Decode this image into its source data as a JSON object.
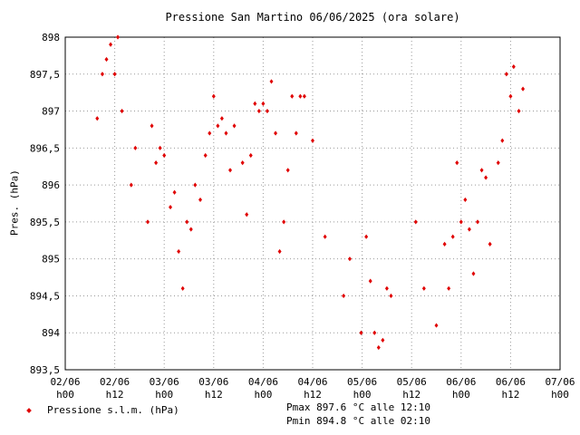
{
  "chart_data": {
    "type": "scatter",
    "title": "Pressione San Martino 06/06/2025 (ora solare)",
    "ylabel": "Pres. (hPa)",
    "xlabel": "",
    "ylim": [
      893.5,
      898
    ],
    "xlim_hours": [
      0,
      120
    ],
    "grid": true,
    "y_ticks": [
      "898",
      "897,5",
      "897",
      "896,5",
      "896",
      "895,5",
      "895",
      "894,5",
      "894",
      "893,5"
    ],
    "x_ticks": [
      {
        "date": "02/06",
        "time": "h00"
      },
      {
        "date": "02/06",
        "time": "h12"
      },
      {
        "date": "03/06",
        "time": "h00"
      },
      {
        "date": "03/06",
        "time": "h12"
      },
      {
        "date": "04/06",
        "time": "h00"
      },
      {
        "date": "04/06",
        "time": "h12"
      },
      {
        "date": "05/06",
        "time": "h00"
      },
      {
        "date": "05/06",
        "time": "h12"
      },
      {
        "date": "06/06",
        "time": "h00"
      },
      {
        "date": "06/06",
        "time": "h12"
      },
      {
        "date": "07/06",
        "time": "h00"
      }
    ],
    "series": [
      {
        "name": "Pressione s.l.m. (hPa)",
        "color": "#e00000",
        "points": [
          [
            "02/06 07:45",
            896.9
          ],
          [
            "02/06 09:00",
            897.5
          ],
          [
            "02/06 10:00",
            897.7
          ],
          [
            "02/06 11:00",
            897.9
          ],
          [
            "02/06 12:00",
            897.5
          ],
          [
            "02/06 12:45",
            898.0
          ],
          [
            "02/06 13:45",
            897.0
          ],
          [
            "02/06 16:00",
            896.0
          ],
          [
            "02/06 17:00",
            896.5
          ],
          [
            "02/06 20:00",
            895.5
          ],
          [
            "02/06 21:00",
            896.8
          ],
          [
            "02/06 22:00",
            896.3
          ],
          [
            "02/06 23:00",
            896.5
          ],
          [
            "03/06 00:00",
            896.4
          ],
          [
            "03/06 01:30",
            895.7
          ],
          [
            "03/06 02:30",
            895.9
          ],
          [
            "03/06 03:30",
            895.1
          ],
          [
            "03/06 04:30",
            894.6
          ],
          [
            "03/06 05:30",
            895.5
          ],
          [
            "03/06 06:30",
            895.4
          ],
          [
            "03/06 07:30",
            896.0
          ],
          [
            "03/06 08:45",
            895.8
          ],
          [
            "03/06 10:00",
            896.4
          ],
          [
            "03/06 11:00",
            896.7
          ],
          [
            "03/06 12:00",
            897.2
          ],
          [
            "03/06 13:00",
            896.8
          ],
          [
            "03/06 14:00",
            896.9
          ],
          [
            "03/06 15:00",
            896.7
          ],
          [
            "03/06 16:00",
            896.2
          ],
          [
            "03/06 17:00",
            896.8
          ],
          [
            "03/06 19:00",
            896.3
          ],
          [
            "03/06 20:00",
            895.6
          ],
          [
            "03/06 21:00",
            896.4
          ],
          [
            "03/06 22:00",
            897.1
          ],
          [
            "03/06 23:00",
            897.0
          ],
          [
            "04/06 00:00",
            897.1
          ],
          [
            "04/06 01:00",
            897.0
          ],
          [
            "04/06 02:00",
            897.4
          ],
          [
            "04/06 03:00",
            896.7
          ],
          [
            "04/06 04:00",
            895.1
          ],
          [
            "04/06 05:00",
            895.5
          ],
          [
            "04/06 06:00",
            896.2
          ],
          [
            "04/06 07:00",
            897.2
          ],
          [
            "04/06 08:00",
            896.7
          ],
          [
            "04/06 09:00",
            897.2
          ],
          [
            "04/06 10:00",
            897.2
          ],
          [
            "04/06 12:00",
            896.6
          ],
          [
            "04/06 15:00",
            895.3
          ],
          [
            "04/06 19:30",
            894.5
          ],
          [
            "04/06 21:00",
            895.0
          ],
          [
            "04/06 23:45",
            894.0
          ],
          [
            "05/06 01:00",
            895.3
          ],
          [
            "05/06 02:00",
            894.7
          ],
          [
            "05/06 03:00",
            894.0
          ],
          [
            "05/06 04:00",
            893.8
          ],
          [
            "05/06 05:00",
            893.9
          ],
          [
            "05/06 06:00",
            894.6
          ],
          [
            "05/06 07:00",
            894.5
          ],
          [
            "05/06 13:00",
            895.5
          ],
          [
            "05/06 15:00",
            894.6
          ],
          [
            "05/06 18:00",
            894.1
          ],
          [
            "05/06 20:00",
            895.2
          ],
          [
            "05/06 21:00",
            894.6
          ],
          [
            "05/06 22:00",
            895.3
          ],
          [
            "05/06 23:00",
            896.3
          ],
          [
            "06/06 00:00",
            895.5
          ],
          [
            "06/06 01:00",
            895.8
          ],
          [
            "06/06 02:00",
            895.4
          ],
          [
            "06/06 03:00",
            894.8
          ],
          [
            "06/06 04:00",
            895.5
          ],
          [
            "06/06 05:00",
            896.2
          ],
          [
            "06/06 06:00",
            896.1
          ],
          [
            "06/06 07:00",
            895.2
          ],
          [
            "06/06 09:00",
            896.3
          ],
          [
            "06/06 10:00",
            896.6
          ],
          [
            "06/06 11:00",
            897.5
          ],
          [
            "06/06 12:00",
            897.2
          ],
          [
            "06/06 12:45",
            897.6
          ],
          [
            "06/06 14:00",
            897.0
          ],
          [
            "06/06 15:00",
            897.3
          ]
        ]
      }
    ]
  },
  "legend": {
    "label": "Pressione s.l.m. (hPa)"
  },
  "stats": {
    "pmax": "Pmax 897.6 °C alle 12:10",
    "pmin": "Pmin 894.8 °C alle 02:10"
  }
}
